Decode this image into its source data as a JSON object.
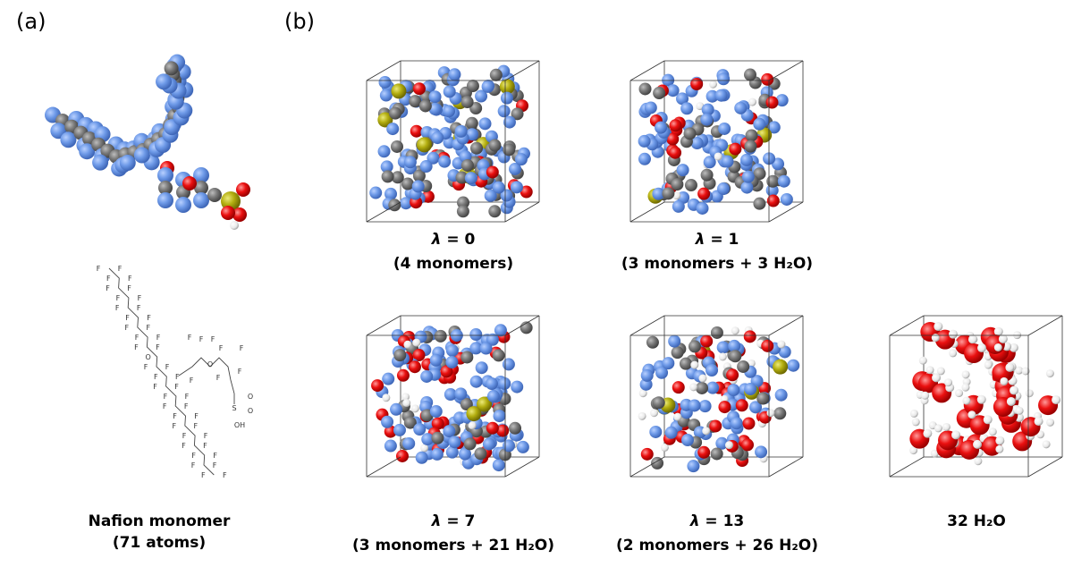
{
  "panel_a": {
    "label": "(a)",
    "caption": [
      "Nafion monomer",
      "(71 atoms)"
    ],
    "structure_labels": {
      "fluorine": "F",
      "oxygen": "O",
      "sulfur": "S",
      "hydroxyl": "OH"
    }
  },
  "panel_b": {
    "label": "(b)",
    "boxes": [
      {
        "symbol": "λ",
        "text": " = 0",
        "caption": "(4 monomers)"
      },
      {
        "symbol": "λ",
        "text": " = 1",
        "caption": "(3 monomers + 3 H₂O)"
      },
      {
        "symbol": "λ",
        "text": " = 7",
        "caption": "(3 monomers + 21 H₂O)"
      },
      {
        "symbol": "λ",
        "text": " = 13",
        "caption": "(2 monomers + 26 H₂O)"
      },
      {
        "caption": "32 H₂O"
      }
    ]
  }
}
